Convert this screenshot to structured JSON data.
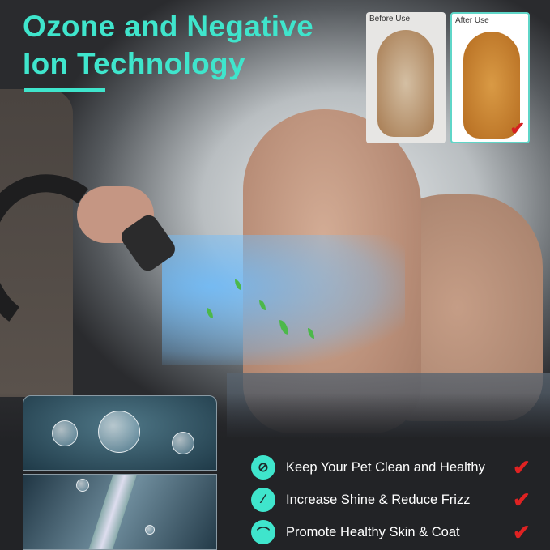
{
  "headline": {
    "line1": "Ozone and Negative",
    "line2": "Ion Technology",
    "accent_color": "#3fe5cc"
  },
  "comparison": {
    "before_label": "Before Use",
    "after_label": "After Use"
  },
  "features": [
    {
      "icon": "no-bacteria-icon",
      "label": "Keep Your Pet Clean and Healthy",
      "check": "check-icon"
    },
    {
      "icon": "sparkle-wand-icon",
      "label": "Increase Shine & Reduce Frizz",
      "check": "check-icon"
    },
    {
      "icon": "skin-follicle-icon",
      "label": "Promote Healthy Skin & Coat",
      "check": "check-icon"
    }
  ],
  "colors": {
    "check": "#e02222",
    "background": "#222326"
  }
}
